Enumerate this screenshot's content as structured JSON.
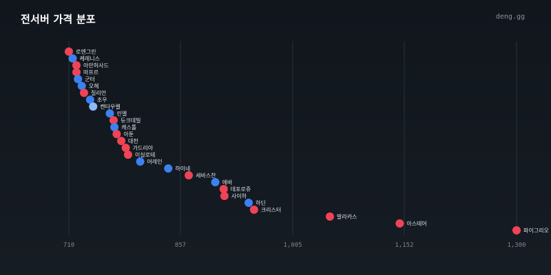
{
  "header": {
    "title": "전서버 가격 분포",
    "brand": "deng.gg"
  },
  "colors": {
    "red": "#ef4456",
    "blue": "#3b82f0",
    "light_blue": "#8fb8f5",
    "background": "#141a21",
    "grid": "#2a313a"
  },
  "chart_data": {
    "type": "scatter",
    "title": "전서버 가격 분포",
    "xlabel": "",
    "ylabel": "",
    "xlim": [
      710,
      1300
    ],
    "x_ticks": [
      {
        "value": 710,
        "label": "710"
      },
      {
        "value": 857,
        "label": "857"
      },
      {
        "value": 1005,
        "label": "1,005"
      },
      {
        "value": 1152,
        "label": "1,152"
      },
      {
        "value": 1300,
        "label": "1,300"
      }
    ],
    "grid": "vertical",
    "points": [
      {
        "label": "로엔그린",
        "value": 710,
        "color": "red"
      },
      {
        "label": "케레니스",
        "value": 715,
        "color": "blue"
      },
      {
        "label": "아만허사드",
        "value": 720,
        "color": "red"
      },
      {
        "label": "마프르",
        "value": 720,
        "color": "red"
      },
      {
        "label": "군터",
        "value": 722,
        "color": "blue"
      },
      {
        "label": "오헤",
        "value": 727,
        "color": "blue"
      },
      {
        "label": "질리언",
        "value": 730,
        "color": "red"
      },
      {
        "label": "조우",
        "value": 738,
        "color": "blue"
      },
      {
        "label": "켄타우렐",
        "value": 742,
        "color": "light_blue"
      },
      {
        "label": "린엘",
        "value": 764,
        "color": "blue"
      },
      {
        "label": "듀크데빌",
        "value": 769,
        "color": "red"
      },
      {
        "label": "캐스톨",
        "value": 770,
        "color": "blue"
      },
      {
        "label": "아툰",
        "value": 773,
        "color": "red"
      },
      {
        "label": "대천",
        "value": 779,
        "color": "red"
      },
      {
        "label": "가드리아",
        "value": 785,
        "color": "red"
      },
      {
        "label": "이실로테",
        "value": 788,
        "color": "red"
      },
      {
        "label": "어레인",
        "value": 804,
        "color": "blue"
      },
      {
        "label": "하이네",
        "value": 841,
        "color": "blue"
      },
      {
        "label": "세바스찬",
        "value": 868,
        "color": "red"
      },
      {
        "label": "에바",
        "value": 903,
        "color": "blue"
      },
      {
        "label": "데포로쥬",
        "value": 914,
        "color": "red"
      },
      {
        "label": "사이하",
        "value": 915,
        "color": "red"
      },
      {
        "label": "하딘",
        "value": 947,
        "color": "blue"
      },
      {
        "label": "크리스터",
        "value": 954,
        "color": "red"
      },
      {
        "label": "발라카스",
        "value": 1054,
        "color": "red"
      },
      {
        "label": "아스테어",
        "value": 1146,
        "color": "red"
      },
      {
        "label": "파이그리오",
        "value": 1300,
        "color": "red"
      }
    ]
  }
}
